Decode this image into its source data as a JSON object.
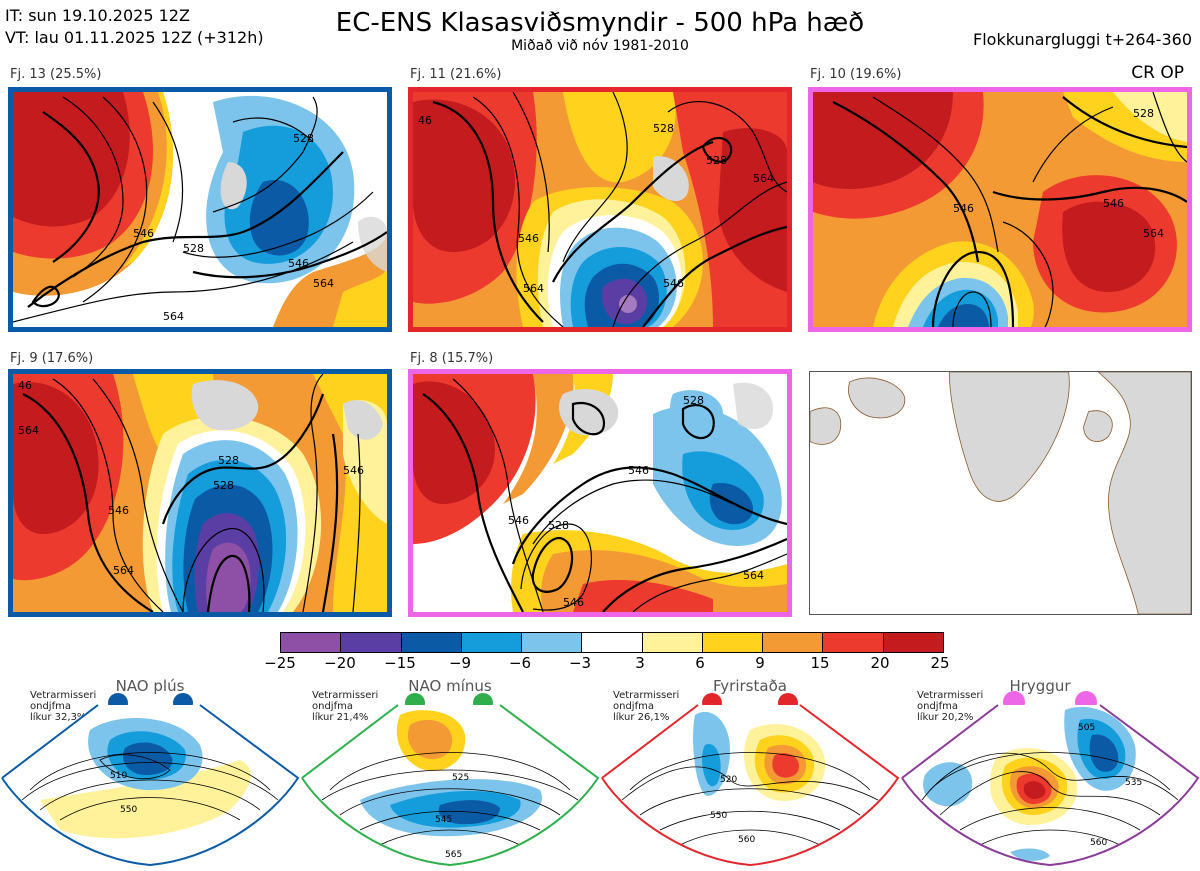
{
  "header": {
    "init_time": "IT: sun 19.10.2025 12Z",
    "valid_time": "VT: lau 01.11.2025 12Z  (+312h)",
    "title": "EC-ENS Klasasviðsmyndir - 500 hPa hæð",
    "subtitle": "Miðað við nóv 1981-2010",
    "window": "Flokkunargluggi t+264-360",
    "cr_op": "CR OP"
  },
  "colors": {
    "c_m25": "#8e4fa6",
    "c_m20": "#5a3ea3",
    "c_m15": "#0b5aa6",
    "c_m9": "#159ddb",
    "c_m6": "#7cc4ec",
    "c_m3": "#ffffff",
    "c_3": "#fff29a",
    "c_6": "#ffd21e",
    "c_9": "#f39a35",
    "c_15": "#ec3a2e",
    "c_20": "#c31b1e",
    "nao_plus": "#0b5aa6",
    "nao_minus": "#2eaf4b",
    "blocking": "#e3262b",
    "ridge": "#ee66e8",
    "land": "#d8d8d8",
    "coast": "#8a5a2b"
  },
  "panels": [
    {
      "label": "Fj. 13 (25.5%)",
      "regime": "nao_plus",
      "contours": [
        "546",
        "528",
        "546",
        "564",
        "564",
        "528"
      ]
    },
    {
      "label": "Fj. 11 (21.6%)",
      "regime": "blocking",
      "contours": [
        "46",
        "528",
        "546",
        "528",
        "564",
        "546",
        "564"
      ]
    },
    {
      "label": "Fj. 10 (19.6%)",
      "regime": "ridge",
      "contours": [
        "546",
        "528",
        "564",
        "546"
      ]
    },
    {
      "label": "Fj. 9 (17.6%)",
      "regime": "nao_plus",
      "contours": [
        "46",
        "528",
        "564",
        "546",
        "564",
        "528",
        "546"
      ]
    },
    {
      "label": "Fj. 8 (15.7%)",
      "regime": "ridge",
      "contours": [
        "528",
        "546",
        "546",
        "528",
        "564",
        "546"
      ]
    }
  ],
  "chart_data": {
    "type": "heatmap",
    "title": "EC-ENS Klasasviðsmyndir - 500 hPa hæð",
    "colorbar": {
      "ticks": [
        "−25",
        "−20",
        "−15",
        "−9",
        "−6",
        "−3",
        "3",
        "6",
        "9",
        "15",
        "20",
        "25"
      ],
      "boundaries": [
        -25,
        -20,
        -15,
        -9,
        -6,
        -3,
        3,
        6,
        9,
        15,
        20,
        25
      ]
    },
    "clusters": [
      {
        "name": "Fj. 13",
        "percent": 25.5,
        "regime": "NAO plús"
      },
      {
        "name": "Fj. 11",
        "percent": 21.6,
        "regime": "Fyrirstaða"
      },
      {
        "name": "Fj. 10",
        "percent": 19.6,
        "regime": "Hryggur"
      },
      {
        "name": "Fj. 9",
        "percent": 17.6,
        "regime": "NAO plús"
      },
      {
        "name": "Fj. 8",
        "percent": 15.7,
        "regime": "Hryggur"
      }
    ]
  },
  "regimes": [
    {
      "title": "NAO plús",
      "note1": "Vetrarmisseri",
      "note2": "ondjfma",
      "note3": "líkur 32,3%",
      "contours": [
        "510",
        "550"
      ]
    },
    {
      "title": "NAO mínus",
      "note1": "Vetrarmisseri",
      "note2": "ondjfma",
      "note3": "líkur 21,4%",
      "contours": [
        "525",
        "545",
        "565"
      ]
    },
    {
      "title": "Fyrirstaða",
      "note1": "Vetrarmisseri",
      "note2": "ondjfma",
      "note3": "líkur 26,1%",
      "contours": [
        "520",
        "550",
        "560"
      ]
    },
    {
      "title": "Hryggur",
      "note1": "Vetrarmisseri",
      "note2": "ondjfma",
      "note3": "líkur 20,2%",
      "contours": [
        "505",
        "535",
        "560"
      ]
    }
  ]
}
